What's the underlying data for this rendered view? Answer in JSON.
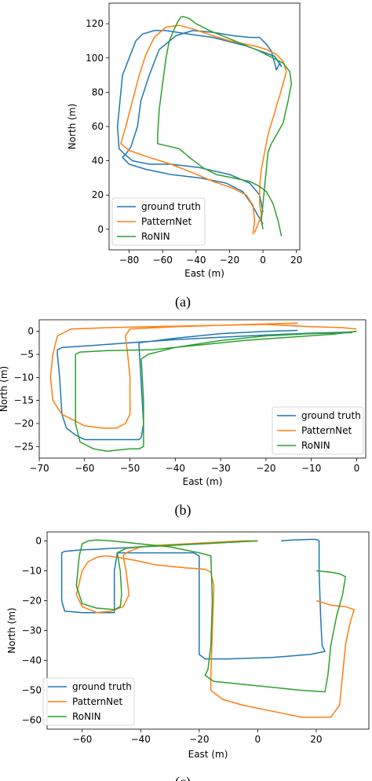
{
  "colors": {
    "ground_truth": "#1f77b4",
    "patternnet": "#ff7f0e",
    "ronin": "#2ca02c"
  },
  "chart_data": [
    {
      "type": "line",
      "caption": "(a)",
      "xlabel": "East (m)",
      "ylabel": "North (m)",
      "xlim": [
        -92,
        22
      ],
      "ylim": [
        -12,
        132
      ],
      "xticks": [
        -80,
        -60,
        -40,
        -20,
        0,
        20
      ],
      "yticks": [
        0,
        20,
        40,
        60,
        80,
        100,
        120
      ],
      "legend": "lower-left",
      "grid": false,
      "series": [
        {
          "name": "ground truth",
          "color_key": "ground_truth",
          "x": [
            0,
            -3,
            -7,
            -12,
            -22,
            -38,
            -55,
            -70,
            -80,
            -84,
            -82,
            -79,
            -75,
            -73,
            -68,
            -62,
            -52,
            -42,
            -30,
            -18,
            -8,
            -2,
            0,
            2,
            5,
            6,
            7,
            8,
            9,
            10,
            11,
            7,
            -10,
            -30,
            -45,
            -58,
            -65,
            -72,
            -76,
            -80,
            -84,
            -87,
            -86,
            -83,
            -78,
            -68,
            -55,
            -38,
            -20,
            -8,
            -2,
            0
          ],
          "y": [
            3,
            8,
            15,
            22,
            27,
            30,
            32,
            35,
            38,
            42,
            44,
            48,
            60,
            75,
            90,
            105,
            113,
            116,
            115,
            113,
            112,
            112,
            110,
            108,
            104,
            100,
            97,
            93,
            95,
            97,
            95,
            101,
            107,
            112,
            114,
            116,
            116,
            114,
            110,
            100,
            90,
            60,
            47,
            44,
            40,
            38,
            38,
            36,
            32,
            27,
            20,
            10
          ]
        },
        {
          "name": "PatternNet",
          "color_key": "patternnet",
          "x": [
            -6,
            -5,
            -6,
            -10,
            -18,
            -30,
            -42,
            -55,
            -68,
            -80,
            -85,
            -82,
            -78,
            -74,
            -70,
            -65,
            -58,
            -50,
            -42,
            -30,
            -20,
            -10,
            -5,
            2,
            8,
            12,
            14,
            12,
            10,
            8,
            7,
            5,
            3,
            1,
            -1,
            -2,
            -2,
            -1,
            -3,
            -5
          ],
          "y": [
            -3,
            5,
            14,
            20,
            24,
            28,
            33,
            38,
            42,
            46,
            50,
            60,
            75,
            90,
            102,
            112,
            118,
            119,
            117,
            113,
            110,
            108,
            107,
            105,
            102,
            98,
            92,
            85,
            78,
            72,
            68,
            62,
            55,
            45,
            35,
            25,
            15,
            8,
            3,
            -2
          ]
        },
        {
          "name": "RoNIN",
          "color_key": "ronin",
          "x": [
            11,
            9,
            6,
            2,
            -2,
            -8,
            -18,
            -28,
            -36,
            -44,
            -50,
            -63,
            -63,
            -62,
            -60,
            -58,
            -56,
            -53,
            -51,
            -49,
            -47,
            -44,
            -40,
            -32,
            -22,
            -12,
            -2,
            6,
            12,
            16,
            17,
            15,
            12,
            8,
            5,
            3,
            2,
            1,
            0,
            -1,
            0
          ],
          "y": [
            -4,
            5,
            15,
            22,
            25,
            28,
            30,
            32,
            36,
            42,
            47,
            50,
            55,
            70,
            85,
            100,
            110,
            117,
            121,
            124,
            124,
            123,
            120,
            116,
            112,
            108,
            104,
            100,
            97,
            92,
            85,
            75,
            62,
            55,
            50,
            45,
            35,
            25,
            15,
            5,
            0
          ]
        }
      ]
    },
    {
      "type": "line",
      "caption": "(b)",
      "xlabel": "East (m)",
      "ylabel": "North (m)",
      "xlim": [
        -70,
        2
      ],
      "ylim": [
        -27.5,
        2.5
      ],
      "xticks": [
        -70,
        -60,
        -50,
        -40,
        -30,
        -20,
        -10,
        0
      ],
      "yticks": [
        0,
        -5,
        -10,
        -15,
        -20,
        -25
      ],
      "legend": "lower-right",
      "grid": false,
      "series": [
        {
          "name": "ground truth",
          "color_key": "ground_truth",
          "x": [
            -13,
            -20,
            -30,
            -40,
            -48,
            -48,
            -47,
            -47.5,
            -48,
            -50,
            -55,
            -60,
            -62,
            -64,
            -65,
            -65.5,
            -66,
            -66,
            -65.5,
            -65,
            -60,
            -50,
            -40,
            -30,
            -20,
            -10,
            -2,
            0
          ],
          "y": [
            0.2,
            0,
            -0.5,
            -1.5,
            -2.5,
            -3.0,
            -20,
            -23,
            -23.5,
            -23.5,
            -23.5,
            -23.5,
            -22.5,
            -21,
            -18,
            -10,
            -5,
            -4,
            -3.8,
            -3.5,
            -3.2,
            -2.5,
            -1.8,
            -1.3,
            -0.8,
            -0.4,
            -0.2,
            0
          ]
        },
        {
          "name": "PatternNet",
          "color_key": "patternnet",
          "x": [
            -13,
            -30,
            -40,
            -50,
            -51,
            -50.5,
            -50,
            -50,
            -51,
            -53,
            -56,
            -60,
            -65,
            -67,
            -67.5,
            -67,
            -66,
            -63,
            -55,
            -45,
            -30,
            -20,
            -10,
            -3,
            0
          ],
          "y": [
            1.8,
            1.3,
            1.0,
            0.5,
            -1,
            -5,
            -10,
            -18,
            -20,
            -21,
            -21,
            -20.5,
            -18,
            -15,
            -10,
            -5,
            -1,
            0.5,
            0.8,
            1.0,
            1.3,
            1.5,
            1.0,
            0.8,
            0.5
          ]
        },
        {
          "name": "RoNIN",
          "color_key": "ronin",
          "x": [
            -1,
            -10,
            -20,
            -30,
            -40,
            -46,
            -47.5,
            -47,
            -47,
            -48,
            -50,
            -55,
            -58,
            -61,
            -62,
            -62,
            -62,
            -61,
            -55,
            -45,
            -35,
            -25,
            -15,
            -5,
            0
          ],
          "y": [
            -0.3,
            -0.5,
            -1.0,
            -2.0,
            -3.5,
            -5,
            -6,
            -15,
            -25,
            -25.5,
            -25.5,
            -26,
            -25.5,
            -24,
            -20,
            -10,
            -5,
            -4.5,
            -4.2,
            -4.0,
            -3.0,
            -2.0,
            -1.3,
            -0.6,
            0
          ]
        }
      ]
    },
    {
      "type": "line",
      "caption": "(c)",
      "xlabel": "East (m)",
      "ylabel": "North (m)",
      "xlim": [
        -72,
        38
      ],
      "ylim": [
        -63,
        3
      ],
      "xticks": [
        -60,
        -40,
        -20,
        0,
        20
      ],
      "yticks": [
        0,
        -10,
        -20,
        -30,
        -40,
        -50,
        -60
      ],
      "legend": "lower-left",
      "grid": false,
      "series": [
        {
          "name": "ground truth",
          "color_key": "ground_truth",
          "x": [
            8,
            12,
            18,
            20,
            21,
            21,
            21.5,
            22,
            23,
            18,
            5,
            -10,
            -18,
            -20,
            -20,
            -20,
            -20,
            -20,
            -22,
            -30,
            -40,
            -48,
            -49,
            -49,
            -49,
            -52,
            -60,
            -66,
            -67,
            -67,
            -67,
            -66,
            -60,
            -55,
            -50,
            -45,
            -40,
            -30,
            -20,
            -10,
            -5,
            0
          ],
          "y": [
            0,
            0.3,
            0.5,
            0.5,
            0,
            -10,
            -25,
            -35,
            -37,
            -38,
            -39,
            -39.5,
            -39.5,
            -38,
            -30,
            -20,
            -10,
            -5,
            -4,
            -4,
            -4,
            -4,
            -10,
            -20,
            -24,
            -24,
            -24,
            -23.5,
            -20,
            -10,
            -4,
            -3.5,
            -3,
            -2.8,
            -2.5,
            -2.3,
            -2,
            -1.5,
            -1,
            -0.5,
            -0.2,
            0
          ]
        },
        {
          "name": "PatternNet",
          "color_key": "patternnet",
          "x": [
            0,
            -5,
            -15,
            -25,
            -35,
            -40,
            -45,
            -46,
            -45,
            -44,
            -46,
            -50,
            -55,
            -60,
            -62,
            -60,
            -58,
            -55,
            -52,
            -48,
            -42,
            -35,
            -25,
            -18,
            -16,
            -15,
            -15.5,
            -16,
            -16,
            -12,
            -5,
            5,
            15,
            25,
            28,
            29,
            30,
            31,
            32,
            33,
            30,
            25,
            20
          ],
          "y": [
            0,
            0,
            -0.5,
            -1,
            -1.5,
            -2,
            -4,
            -5,
            -10,
            -18,
            -22,
            -23.5,
            -24,
            -22,
            -18,
            -10,
            -7,
            -5.5,
            -5,
            -5.5,
            -6.5,
            -8,
            -9,
            -9.5,
            -10.5,
            -15,
            -30,
            -45,
            -50,
            -53,
            -55,
            -57,
            -59,
            -59,
            -55,
            -45,
            -35,
            -30,
            -26,
            -23,
            -22,
            -21.5,
            -20
          ]
        },
        {
          "name": "RoNIN",
          "color_key": "ronin",
          "x": [
            0,
            -10,
            -20,
            -30,
            -40,
            -45,
            -48,
            -47,
            -46.5,
            -47,
            -49,
            -55,
            -60,
            -62,
            -61,
            -60,
            -58,
            -55,
            -50,
            -40,
            -30,
            -20,
            -16,
            -15.5,
            -16,
            -17,
            -18,
            -15,
            -5,
            5,
            15,
            23,
            24,
            25,
            27,
            29,
            30,
            28,
            25,
            20
          ],
          "y": [
            0,
            -0.5,
            -1,
            -1.5,
            -2,
            -2.5,
            -4,
            -10,
            -18,
            -22,
            -23,
            -22.5,
            -21,
            -15,
            -5,
            -1,
            0,
            0.3,
            0,
            -1,
            -2,
            -4,
            -5,
            -20,
            -35,
            -43,
            -45,
            -47,
            -48,
            -49,
            -50,
            -50.5,
            -45,
            -35,
            -25,
            -18,
            -12,
            -11,
            -10.5,
            -10
          ]
        }
      ]
    }
  ]
}
